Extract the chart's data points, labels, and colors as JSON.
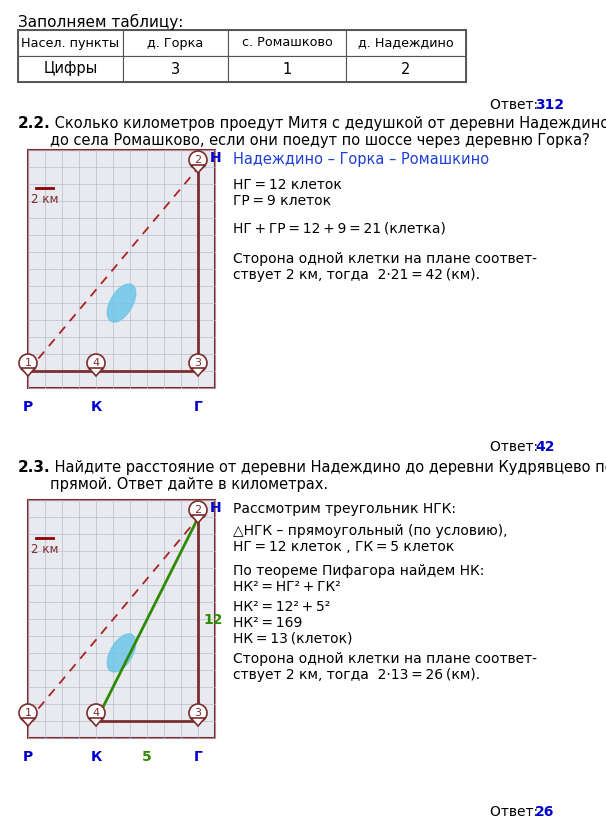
{
  "bg_color": "#ffffff",
  "title_section1": "Заполняем таблицу:",
  "table_headers": [
    "Насел. пункты",
    "д. Горка",
    "с. Ромашково",
    "д. Надеждино"
  ],
  "table_row1": [
    "Цифры",
    "3",
    "1",
    "2"
  ],
  "answer1_text": "Ответ:",
  "answer1_val": "312",
  "q22_bold": "2.2.",
  "q22_text": " Сколько километров проедут Митя с дедушкой от деревни Надеждино\nдо села Ромашково, если они поедут по шоссе через деревню Горка?",
  "map1_route_text": "Надеждино – Горка – Ромашкино",
  "map1_line1": "НГ = 12 клеток",
  "map1_line2": "ГР = 9 клеток",
  "map1_line3": "НГ + ГР = 12 + 9 = 21 (клетка)",
  "map1_line4": "Сторона одной клетки на плане соответ-\nствует 2 км, тогда  2·21 = 42 (км).",
  "answer2_text": "Ответ:",
  "answer2_val": "42",
  "q23_bold": "2.3.",
  "q23_text": " Найдите расстояние от деревни Надеждино до деревни Кудрявцево по\nпрямой. Ответ дайте в километрах.",
  "map2_line1": "Рассмотрим треугольник НГК:",
  "map2_line2": "△НГК – прямоугольный (по условию),\nНГ = 12 клеток , ГК = 5 клеток",
  "map2_line3": "По теореме Пифагора найдем НК:\nНК² = НГ² + ГК²",
  "map2_line4": "НК² = 12² + 5²",
  "map2_line5": "НК² = 169",
  "map2_line6": "НК = 13 (клеток)",
  "map2_line7": "Сторона одной клетки на плане соответ-\nствует 2 км, тогда  2·13 = 26 (км).",
  "answer3_text": "Ответ:",
  "answer3_val": "26",
  "dark_red": "#7B2D2D",
  "blue_answer": "#0000CD",
  "blue_route": "#1E3ED8",
  "green_label": "#2E8B00",
  "grid_color": "#cccccc",
  "map_bg": "#e8eaf0"
}
